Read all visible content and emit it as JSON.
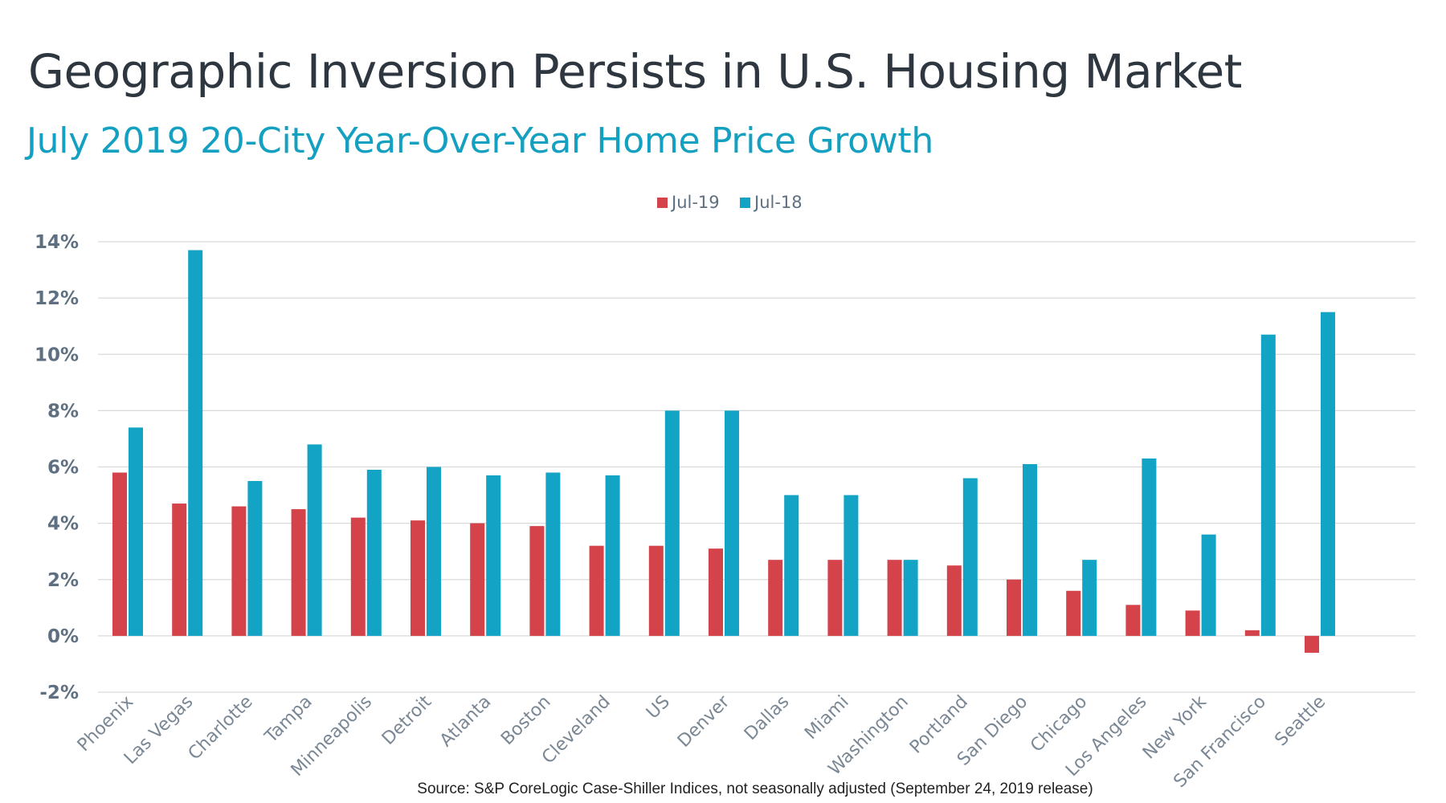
{
  "source_note": "Source:  S&P CoreLogic Case-Shiller Indices, not seasonally adjusted (September 24, 2019 release)",
  "colors": {
    "jul19": "#d4424a",
    "jul18": "#12a3c5",
    "grid": "#d9d9d9",
    "title": "#2e3640",
    "subtitle": "#14a0c0"
  },
  "chart_data": {
    "type": "bar",
    "title": "Geographic Inversion Persists in U.S. Housing Market",
    "subtitle": "July 2019 20-City Year-Over-Year Home Price Growth",
    "xlabel": "",
    "ylabel": "",
    "ylim": [
      -2,
      14
    ],
    "yticks": [
      -2,
      0,
      2,
      4,
      6,
      8,
      10,
      12,
      14
    ],
    "ytick_labels": [
      "-2%",
      "0%",
      "2%",
      "4%",
      "6%",
      "8%",
      "10%",
      "12%",
      "14%"
    ],
    "grid": true,
    "legend_position": "top-center",
    "categories": [
      "Phoenix",
      "Las Vegas",
      "Charlotte",
      "Tampa",
      "Minneapolis",
      "Detroit",
      "Atlanta",
      "Boston",
      "Cleveland",
      "US",
      "Denver",
      "Dallas",
      "Miami",
      "Washington",
      "Portland",
      "San Diego",
      "Chicago",
      "Los Angeles",
      "New York",
      "San Francisco",
      "Seattle"
    ],
    "series": [
      {
        "name": "Jul-19",
        "values": [
          5.8,
          4.7,
          4.6,
          4.5,
          4.2,
          4.1,
          4.0,
          3.9,
          3.2,
          3.2,
          3.1,
          2.7,
          2.7,
          2.7,
          2.5,
          2.0,
          1.6,
          1.1,
          0.9,
          0.2,
          -0.6
        ]
      },
      {
        "name": "Jul-18",
        "values": [
          7.4,
          13.7,
          5.5,
          6.8,
          5.9,
          6.0,
          5.7,
          5.8,
          5.7,
          8.0,
          8.0,
          5.0,
          5.0,
          2.7,
          5.6,
          6.1,
          2.7,
          6.3,
          3.6,
          10.7,
          11.5
        ]
      }
    ]
  }
}
